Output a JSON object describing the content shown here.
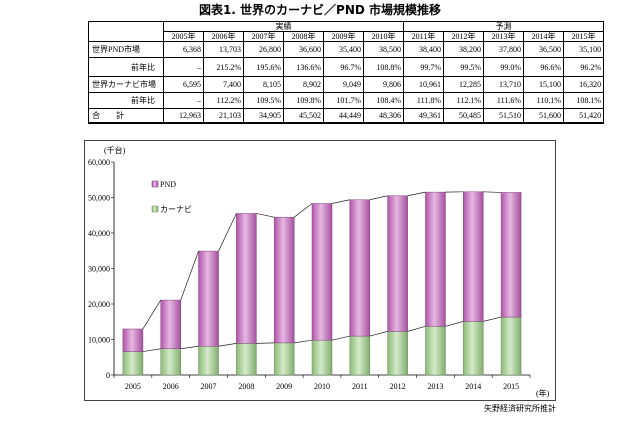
{
  "title": "図表1. 世界のカーナビ／PND 市場規模推移",
  "table": {
    "groups": [
      {
        "label": "実績",
        "years": [
          "2005年",
          "2006年",
          "2007年",
          "2008年",
          "2009年",
          "2010年"
        ]
      },
      {
        "label": "予測",
        "years": [
          "2011年",
          "2012年",
          "2013年",
          "2014年",
          "2015年"
        ]
      }
    ],
    "rows": [
      {
        "label": "世界PND市場",
        "values": [
          "6,368",
          "13,703",
          "26,800",
          "36,600",
          "35,400",
          "38,500",
          "38,400",
          "38,200",
          "37,800",
          "36,500",
          "35,100"
        ]
      },
      {
        "label": "前年比",
        "values": [
          "–",
          "215.2%",
          "195.6%",
          "136.6%",
          "96.7%",
          "108.8%",
          "99.7%",
          "99.5%",
          "99.0%",
          "96.6%",
          "96.2%"
        ]
      },
      {
        "label": "世界カーナビ市場",
        "values": [
          "6,595",
          "7,400",
          "8,105",
          "8,902",
          "9,049",
          "9,806",
          "10,961",
          "12,285",
          "13,710",
          "15,100",
          "16,320"
        ]
      },
      {
        "label": "前年比",
        "values": [
          "–",
          "112.2%",
          "109.5%",
          "109.8%",
          "101.7%",
          "108.4%",
          "111.8%",
          "112.1%",
          "111.6%",
          "110.1%",
          "108.1%"
        ]
      },
      {
        "label": "合　　計",
        "values": [
          "12,963",
          "21,103",
          "34,905",
          "45,502",
          "44,449",
          "48,306",
          "49,361",
          "50,485",
          "51,510",
          "51,600",
          "51,420"
        ]
      }
    ]
  },
  "chart_data": {
    "type": "bar",
    "stacked": true,
    "categories": [
      "2005",
      "2006",
      "2007",
      "2008",
      "2009",
      "2010",
      "2011",
      "2012",
      "2013",
      "2014",
      "2015"
    ],
    "series": [
      {
        "name": "カーナビ",
        "values": [
          6595,
          7400,
          8105,
          8902,
          9049,
          9806,
          10961,
          12285,
          13710,
          15100,
          16320
        ],
        "color": "#9fd387"
      },
      {
        "name": "PND",
        "values": [
          6368,
          13703,
          26800,
          36600,
          35400,
          38500,
          38400,
          38200,
          37800,
          36500,
          35100
        ],
        "color": "#c862c0"
      }
    ],
    "ylim": [
      0,
      60000
    ],
    "yticks": [
      {
        "value": 0,
        "label": "0"
      },
      {
        "value": 10000,
        "label": "10,000"
      },
      {
        "value": 20000,
        "label": "20,000"
      },
      {
        "value": 30000,
        "label": "30,000"
      },
      {
        "value": 40000,
        "label": "40,000"
      },
      {
        "value": 50000,
        "label": "50,000"
      },
      {
        "value": 60000,
        "label": "60,000"
      }
    ],
    "ylabel": "(千台)",
    "xlabel": "(年)",
    "legend": "top-left",
    "series_lines": true,
    "grid": false
  },
  "source": "矢野経済研究所推計"
}
